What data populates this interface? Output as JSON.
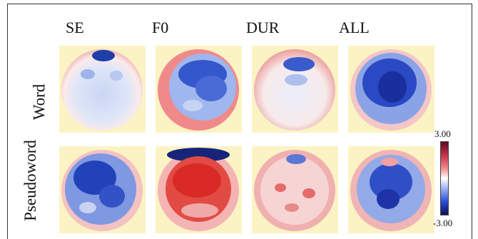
{
  "columns": [
    "SE",
    "F0",
    "DUR",
    "ALL"
  ],
  "rows": [
    "Word",
    "Pseudoword"
  ],
  "colorbar": {
    "max_label": "3.00",
    "min_label": "-3.00"
  },
  "colors": {
    "panel_bg": "#fbf3c4",
    "positive": "#d9262a",
    "negative": "#1e3fc8",
    "neutral": "#ffffff"
  }
}
